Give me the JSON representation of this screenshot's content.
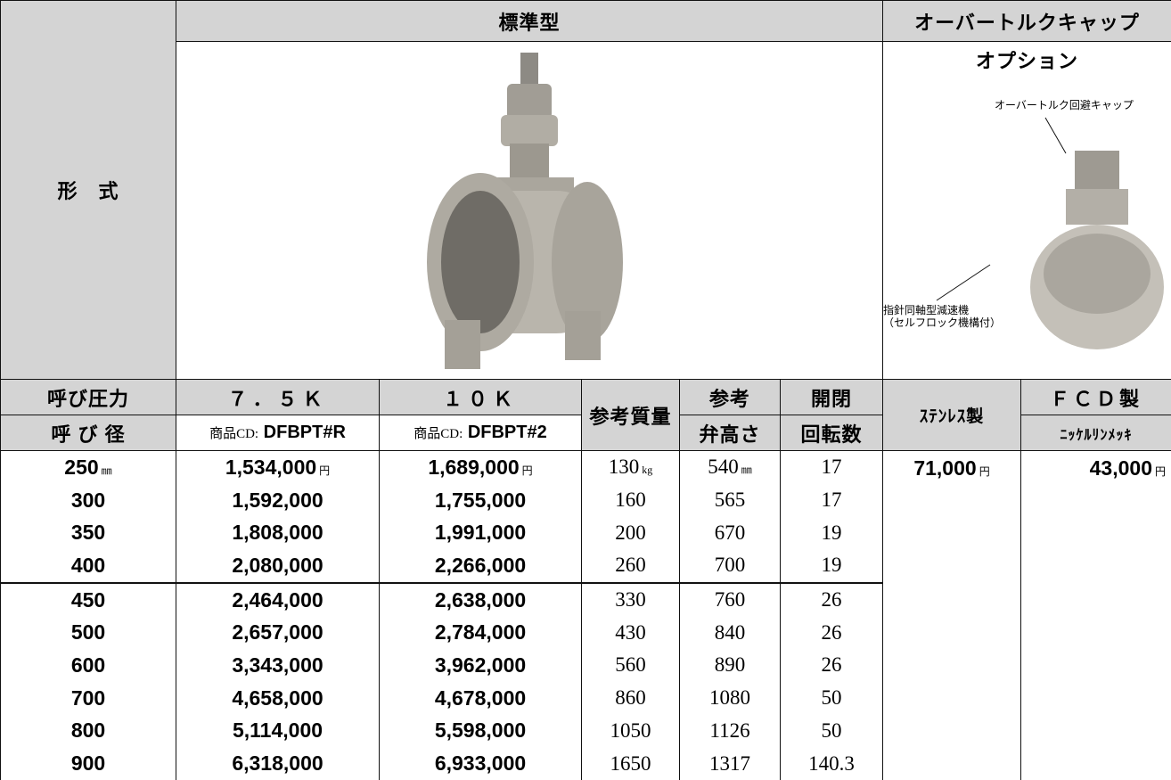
{
  "header": {
    "type_label": "形　式",
    "standard": "標準型",
    "option_title": "オーバートルクキャップ",
    "option_sub": "オプション",
    "callout_cap": "オーバートルク回避キャップ",
    "callout_reducer": [
      "指針同軸型減速機",
      "（セルフロック機構付）"
    ]
  },
  "columns": {
    "pressure_label": "呼び圧力",
    "size_label": "呼 び 径",
    "pressures": [
      "７．５Ｋ",
      "１０Ｋ"
    ],
    "codes": [
      {
        "prefix": "商品CD:",
        "code": "DFBPT#R"
      },
      {
        "prefix": "商品CD:",
        "code": "DFBPT#2"
      }
    ],
    "weight": "参考質量",
    "height": [
      "参考",
      "弁高さ"
    ],
    "turns": [
      "開閉",
      "回転数"
    ],
    "stainless": "ｽﾃﾝﾚｽ製",
    "fcd": "ＦＣＤ製",
    "nickel": "ﾆｯｹﾙﾘﾝﾒｯｷ"
  },
  "table": {
    "units": [
      "㎜",
      "円",
      "円",
      "kg",
      "㎜"
    ],
    "rows": [
      [
        "250",
        "1,534,000",
        "1,689,000",
        "130",
        "540",
        "17"
      ],
      [
        "300",
        "1,592,000",
        "1,755,000",
        "160",
        "565",
        "17"
      ],
      [
        "350",
        "1,808,000",
        "1,991,000",
        "200",
        "670",
        "19"
      ],
      [
        "400",
        "2,080,000",
        "2,266,000",
        "260",
        "700",
        "19"
      ],
      [
        "450",
        "2,464,000",
        "2,638,000",
        "330",
        "760",
        "26"
      ],
      [
        "500",
        "2,657,000",
        "2,784,000",
        "430",
        "840",
        "26"
      ],
      [
        "600",
        "3,343,000",
        "3,962,000",
        "560",
        "890",
        "26"
      ],
      [
        "700",
        "4,658,000",
        "4,678,000",
        "860",
        "1080",
        "50"
      ],
      [
        "800",
        "5,114,000",
        "5,598,000",
        "1050",
        "1126",
        "50"
      ],
      [
        "900",
        "6,318,000",
        "6,933,000",
        "1650",
        "1317",
        "140.3"
      ]
    ],
    "option_prices": [
      {
        "value": "71,000",
        "unit": "円"
      },
      {
        "value": "43,000",
        "unit": "円"
      }
    ]
  }
}
